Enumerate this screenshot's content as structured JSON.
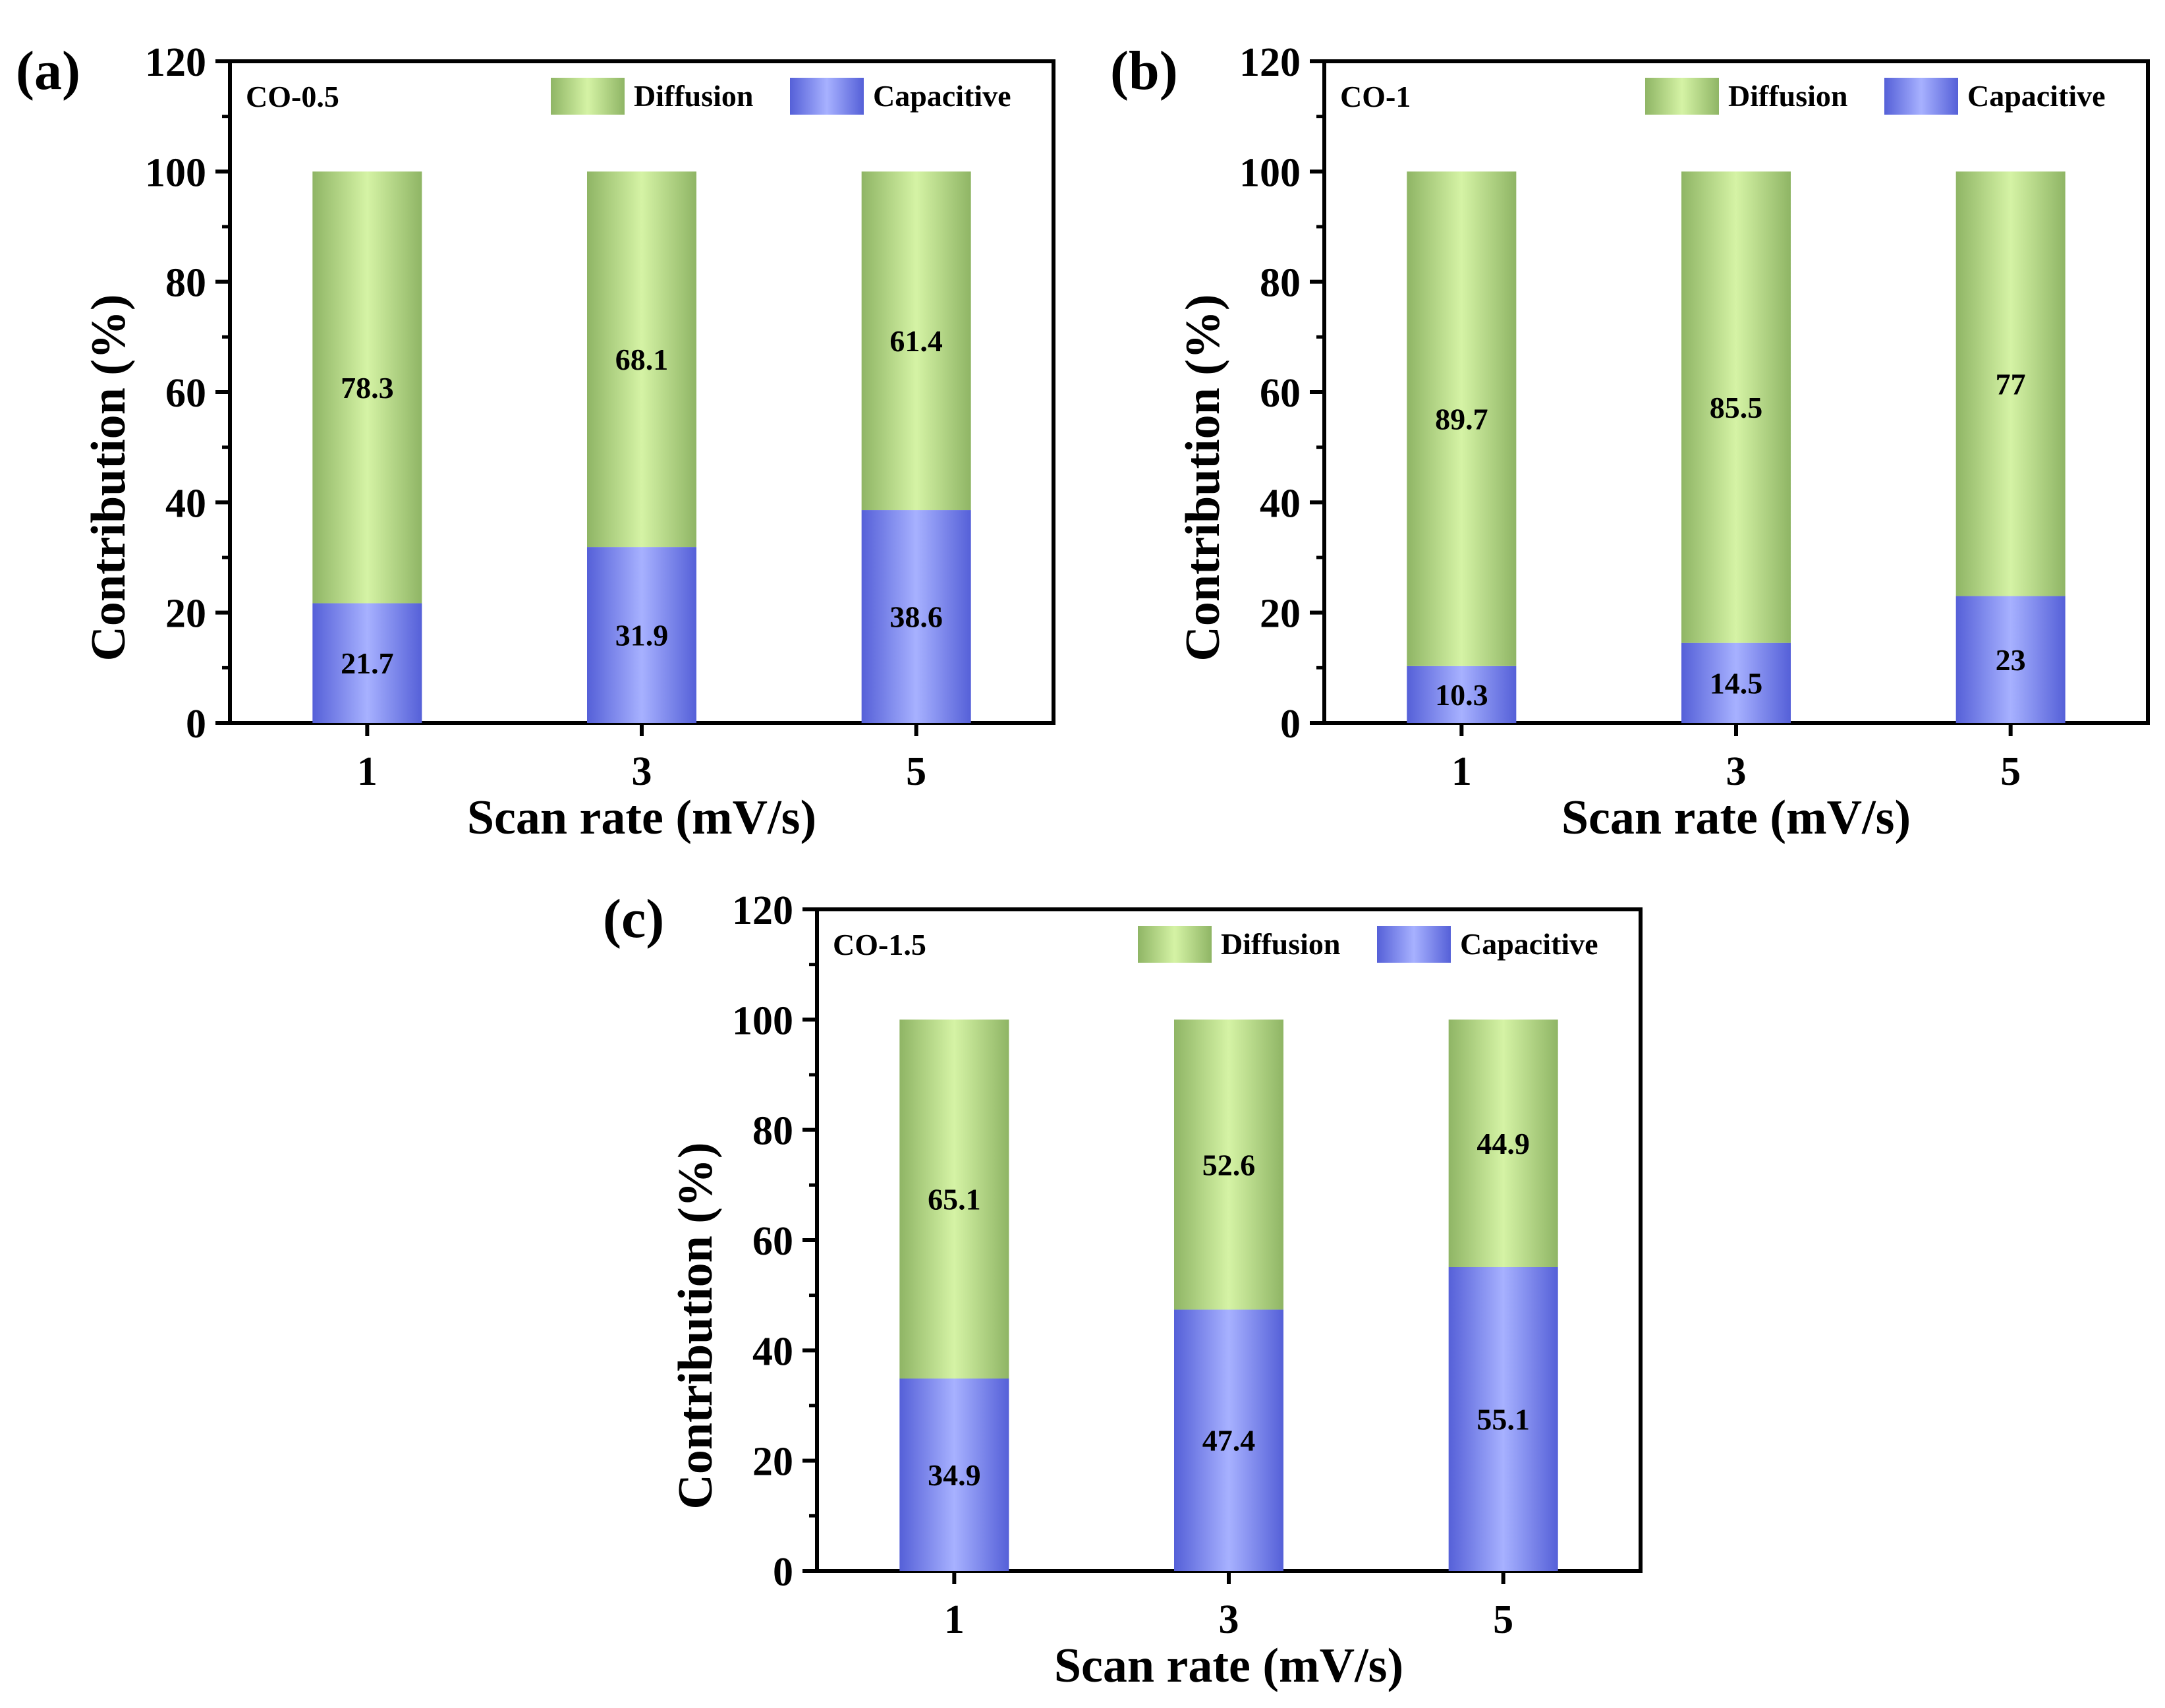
{
  "figure": {
    "colors": {
      "diffusion_edge": "#8fb565",
      "diffusion_center": "#d5f3a5",
      "capacitive_edge": "#5560d8",
      "capacitive_center": "#a7b1ff",
      "axis": "#000000"
    },
    "icons": {
      "legend_swatch": "square-swatch"
    }
  },
  "chart_data": [
    {
      "id": "a",
      "type": "bar",
      "stacked": true,
      "panel_label": "(a)",
      "sample": "CO-0.5",
      "xlabel": "Scan rate (mV/s)",
      "ylabel": "Contribution (%)",
      "ylim": [
        0,
        120
      ],
      "yticks": [
        "0",
        "20",
        "40",
        "60",
        "80",
        "100",
        "120"
      ],
      "categories": [
        "1",
        "3",
        "5"
      ],
      "legend": [
        "Diffusion",
        "Capacitive"
      ],
      "legend_position": "top-right",
      "series": [
        {
          "name": "Capacitive",
          "values": [
            21.7,
            31.9,
            38.6
          ],
          "labels": [
            "21.7",
            "31.9",
            "38.6"
          ]
        },
        {
          "name": "Diffusion",
          "values": [
            78.3,
            68.1,
            61.4
          ],
          "labels": [
            "78.3",
            "68.1",
            "61.4"
          ]
        }
      ]
    },
    {
      "id": "b",
      "type": "bar",
      "stacked": true,
      "panel_label": "(b)",
      "sample": "CO-1",
      "xlabel": "Scan rate (mV/s)",
      "ylabel": "Contribution (%)",
      "ylim": [
        0,
        120
      ],
      "yticks": [
        "0",
        "20",
        "40",
        "60",
        "80",
        "100",
        "120"
      ],
      "categories": [
        "1",
        "3",
        "5"
      ],
      "legend": [
        "Diffusion",
        "Capacitive"
      ],
      "legend_position": "top-right",
      "series": [
        {
          "name": "Capacitive",
          "values": [
            10.3,
            14.5,
            23
          ],
          "labels": [
            "10.3",
            "14.5",
            "23"
          ]
        },
        {
          "name": "Diffusion",
          "values": [
            89.7,
            85.5,
            77
          ],
          "labels": [
            "89.7",
            "85.5",
            "77"
          ]
        }
      ]
    },
    {
      "id": "c",
      "type": "bar",
      "stacked": true,
      "panel_label": "(c)",
      "sample": "CO-1.5",
      "xlabel": "Scan rate (mV/s)",
      "ylabel": "Contribution (%)",
      "ylim": [
        0,
        120
      ],
      "yticks": [
        "0",
        "20",
        "40",
        "60",
        "80",
        "100",
        "120"
      ],
      "categories": [
        "1",
        "3",
        "5"
      ],
      "legend": [
        "Diffusion",
        "Capacitive"
      ],
      "legend_position": "top-right",
      "series": [
        {
          "name": "Capacitive",
          "values": [
            34.9,
            47.4,
            55.1
          ],
          "labels": [
            "34.9",
            "47.4",
            "55.1"
          ]
        },
        {
          "name": "Diffusion",
          "values": [
            65.1,
            52.6,
            44.9
          ],
          "labels": [
            "65.1",
            "52.6",
            "44.9"
          ]
        }
      ]
    }
  ]
}
